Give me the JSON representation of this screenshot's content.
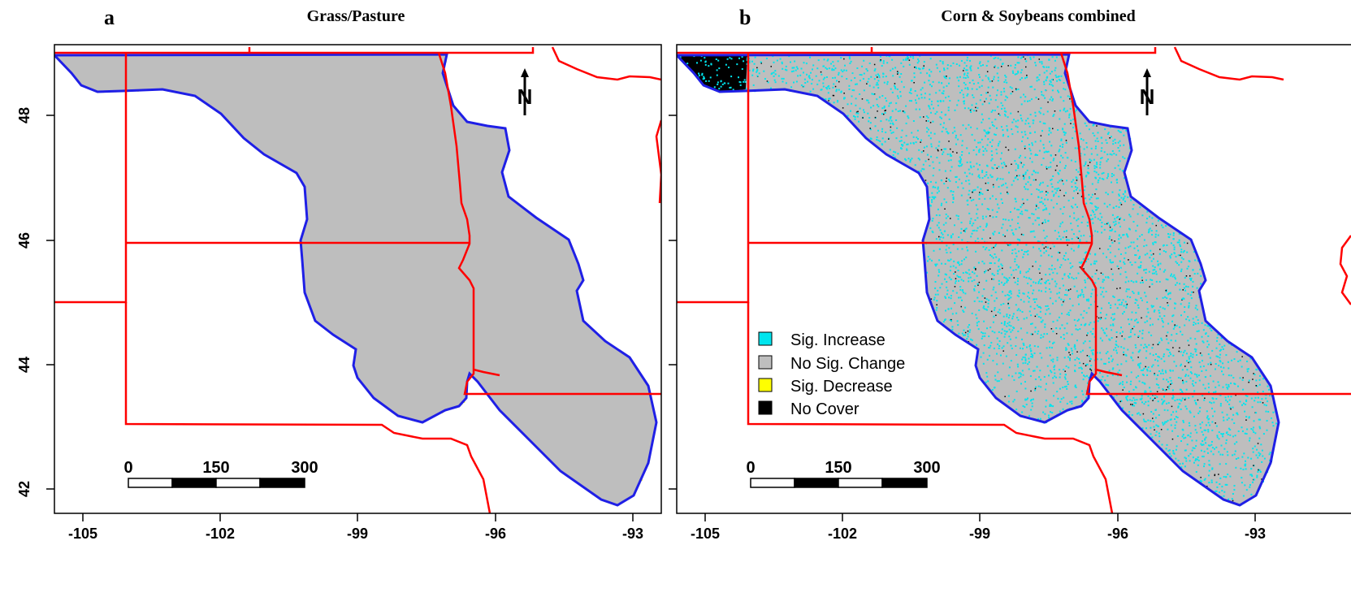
{
  "panels": [
    {
      "letter": "a",
      "title": "Grass/Pasture",
      "accent_color": "#ffff00"
    },
    {
      "letter": "b",
      "title": "Corn & Soybeans combined",
      "accent_color": "#00e5ee"
    }
  ],
  "x_ticks": [
    "-105",
    "-102",
    "-99",
    "-96",
    "-93"
  ],
  "y_ticks": [
    "48",
    "46",
    "44",
    "42"
  ],
  "scale_bar": {
    "labels": [
      "0",
      "150",
      "300"
    ]
  },
  "north_arrow": {
    "label": "N",
    "icon": "north-arrow-icon"
  },
  "legend": {
    "items": [
      {
        "label": "Sig. Increase",
        "color": "#00e5ee"
      },
      {
        "label": "No Sig. Change",
        "color": "#bebebe"
      },
      {
        "label": "Sig. Decrease",
        "color": "#ffff00"
      },
      {
        "label": "No Cover",
        "color": "#000000"
      }
    ]
  },
  "colors": {
    "study_area_border": "#1f1fe6",
    "state_border": "#ff0000",
    "no_change": "#bebebe"
  }
}
